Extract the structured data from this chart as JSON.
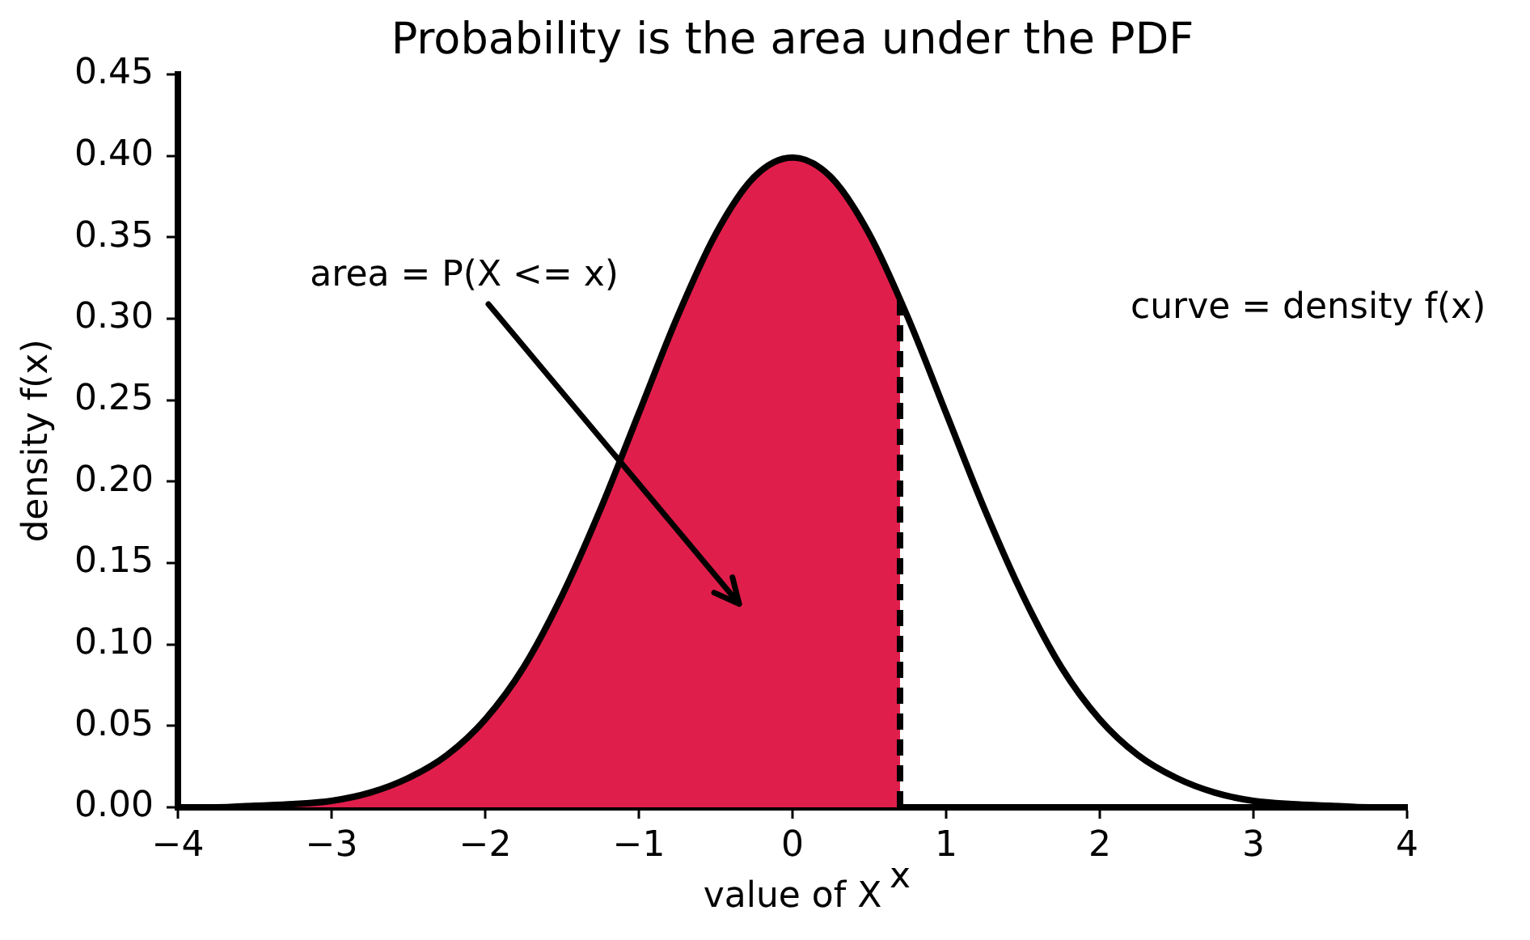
{
  "chart_data": {
    "type": "line",
    "title": "Probability is the area under the PDF",
    "xlabel": "value of X",
    "ylabel": "density f(x)",
    "xlim": [
      -4,
      4
    ],
    "xticks": [
      {
        "value": -4,
        "label": "−4"
      },
      {
        "value": -3,
        "label": "−3"
      },
      {
        "value": -2,
        "label": "−2"
      },
      {
        "value": -1,
        "label": "−1"
      },
      0,
      1,
      2,
      3,
      4
    ],
    "ylim": [
      0,
      0.45
    ],
    "yticks": [
      {
        "value": 0,
        "label": "0.00"
      },
      0.05,
      {
        "value": 0.1,
        "label": "0.10"
      },
      0.15,
      {
        "value": 0.2,
        "label": "0.20"
      },
      0.25,
      {
        "value": 0.3,
        "label": "0.30"
      },
      0.35,
      {
        "value": 0.4,
        "label": "0.40"
      },
      0.45
    ],
    "grid": false,
    "legend": false,
    "marker": "none",
    "series": [
      {
        "color": "#000000",
        "x": [
          -4,
          -3.75,
          -3.5,
          -3.25,
          -3,
          -2.75,
          -2.5,
          -2.25,
          -2,
          -1.75,
          -1.5,
          -1.25,
          -1,
          -0.75,
          -0.5,
          -0.25,
          0,
          0.25,
          0.5,
          0.75,
          1,
          1.25,
          1.5,
          1.75,
          2,
          2.25,
          2.5,
          2.75,
          3,
          3.25,
          3.5,
          3.75,
          4
        ],
        "values": [
          0,
          0,
          0.001,
          0.002,
          0.004,
          0.009,
          0.018,
          0.032,
          0.054,
          0.086,
          0.13,
          0.183,
          0.242,
          0.301,
          0.352,
          0.387,
          0.399,
          0.387,
          0.352,
          0.301,
          0.242,
          0.183,
          0.13,
          0.086,
          0.054,
          0.032,
          0.018,
          0.009,
          0.004,
          0.002,
          0.001,
          0,
          0
        ]
      },
      {
        "type": "area",
        "color": "#e01e4b",
        "x": [
          -4,
          -3.75,
          -3.5,
          -3.25,
          -3,
          -2.75,
          -2.5,
          -2.25,
          -2,
          -1.75,
          -1.5,
          -1.25,
          -1,
          -0.75,
          -0.5,
          -0.25,
          0,
          0.25,
          0.5,
          0.7
        ],
        "values": [
          0,
          0,
          0.001,
          0.002,
          0.004,
          0.009,
          0.018,
          0.032,
          0.054,
          0.086,
          0.13,
          0.183,
          0.242,
          0.301,
          0.352,
          0.387,
          0.399,
          0.387,
          0.352,
          0.312
        ]
      },
      {
        "color": "#000000",
        "line_style": "dashed",
        "x": [
          0.7,
          0.7
        ],
        "values": [
          0,
          0.312
        ]
      }
    ],
    "annotations": [
      "area = P(X <= x)",
      "curve = density f(x)",
      {
        "text": "x",
        "x": 0.7,
        "y": 0
      }
    ]
  }
}
